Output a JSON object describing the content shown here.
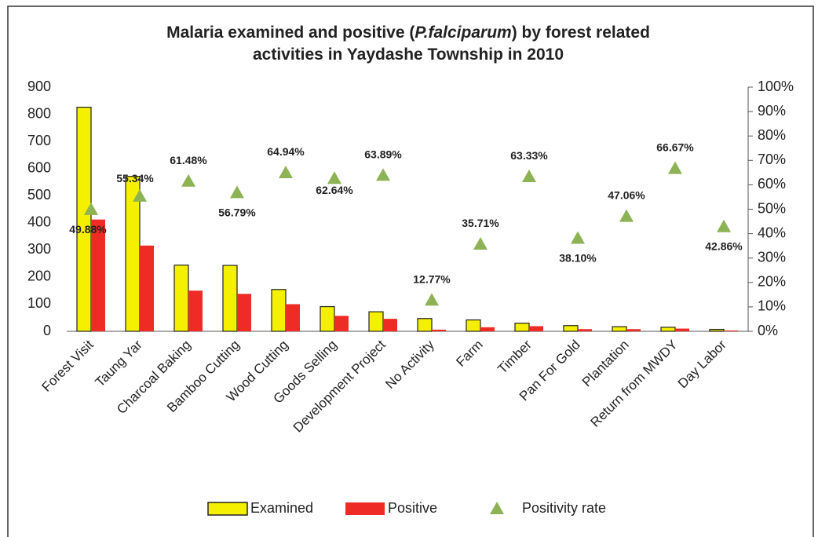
{
  "chart_data": {
    "type": "bar_line_combo",
    "title": [
      [
        "Malaria examined and positive (",
        "P.falciparum",
        ") by forest related"
      ],
      [
        "activities in Yaydashe Township in 2010"
      ]
    ],
    "categories": [
      "Forest Visit",
      "Taung Yar",
      "Charcoal Baking",
      "Bamboo Cutting",
      "Wood Cutting",
      "Goods Selling",
      "Development Project",
      "No Activity",
      "Farm",
      "Timber",
      "Pan For Gold",
      "Plantation",
      "Return from MWDY",
      "Day Labor"
    ],
    "series": [
      {
        "name": "Examined",
        "type": "bar",
        "color": "#f5f000",
        "values": [
          826,
          571,
          244,
          243,
          154,
          91,
          72,
          47,
          42,
          30,
          21,
          17,
          15,
          7
        ]
      },
      {
        "name": "Positive",
        "type": "bar",
        "color": "#ee2b25",
        "values": [
          412,
          316,
          150,
          138,
          100,
          57,
          46,
          6,
          15,
          19,
          8,
          8,
          10,
          3
        ]
      },
      {
        "name": "Positivity rate",
        "type": "scatter",
        "axis": "y2",
        "color": "#8db355",
        "values": [
          49.88,
          55.34,
          61.48,
          56.79,
          64.94,
          62.64,
          63.89,
          12.77,
          35.71,
          63.33,
          38.1,
          47.06,
          66.67,
          42.86
        ],
        "value_labels": [
          "49.88%",
          "55.34%",
          "61.48%",
          "56.79%",
          "64.94%",
          "62.64%",
          "63.89%",
          "12.77%",
          "35.71%",
          "63.33%",
          "38.10%",
          "47.06%",
          "66.67%",
          "42.86%"
        ]
      }
    ],
    "ylim": [
      0,
      900
    ],
    "yticks": [
      0,
      100,
      200,
      300,
      400,
      500,
      600,
      700,
      800,
      900
    ],
    "y2lim": [
      0,
      100
    ],
    "y2ticks": [
      {
        "value": 0,
        "label": "0%"
      },
      {
        "value": 10,
        "label": "10%"
      },
      {
        "value": 20,
        "label": "20%"
      },
      {
        "value": 30,
        "label": "30%"
      },
      {
        "value": 40,
        "label": "40%"
      },
      {
        "value": 50,
        "label": "50%"
      },
      {
        "value": 60,
        "label": "60%"
      },
      {
        "value": 70,
        "label": "70%"
      },
      {
        "value": 80,
        "label": "80%"
      },
      {
        "value": 90,
        "label": "90%"
      },
      {
        "value": 100,
        "label": "100%"
      }
    ],
    "legend": "bottom"
  }
}
